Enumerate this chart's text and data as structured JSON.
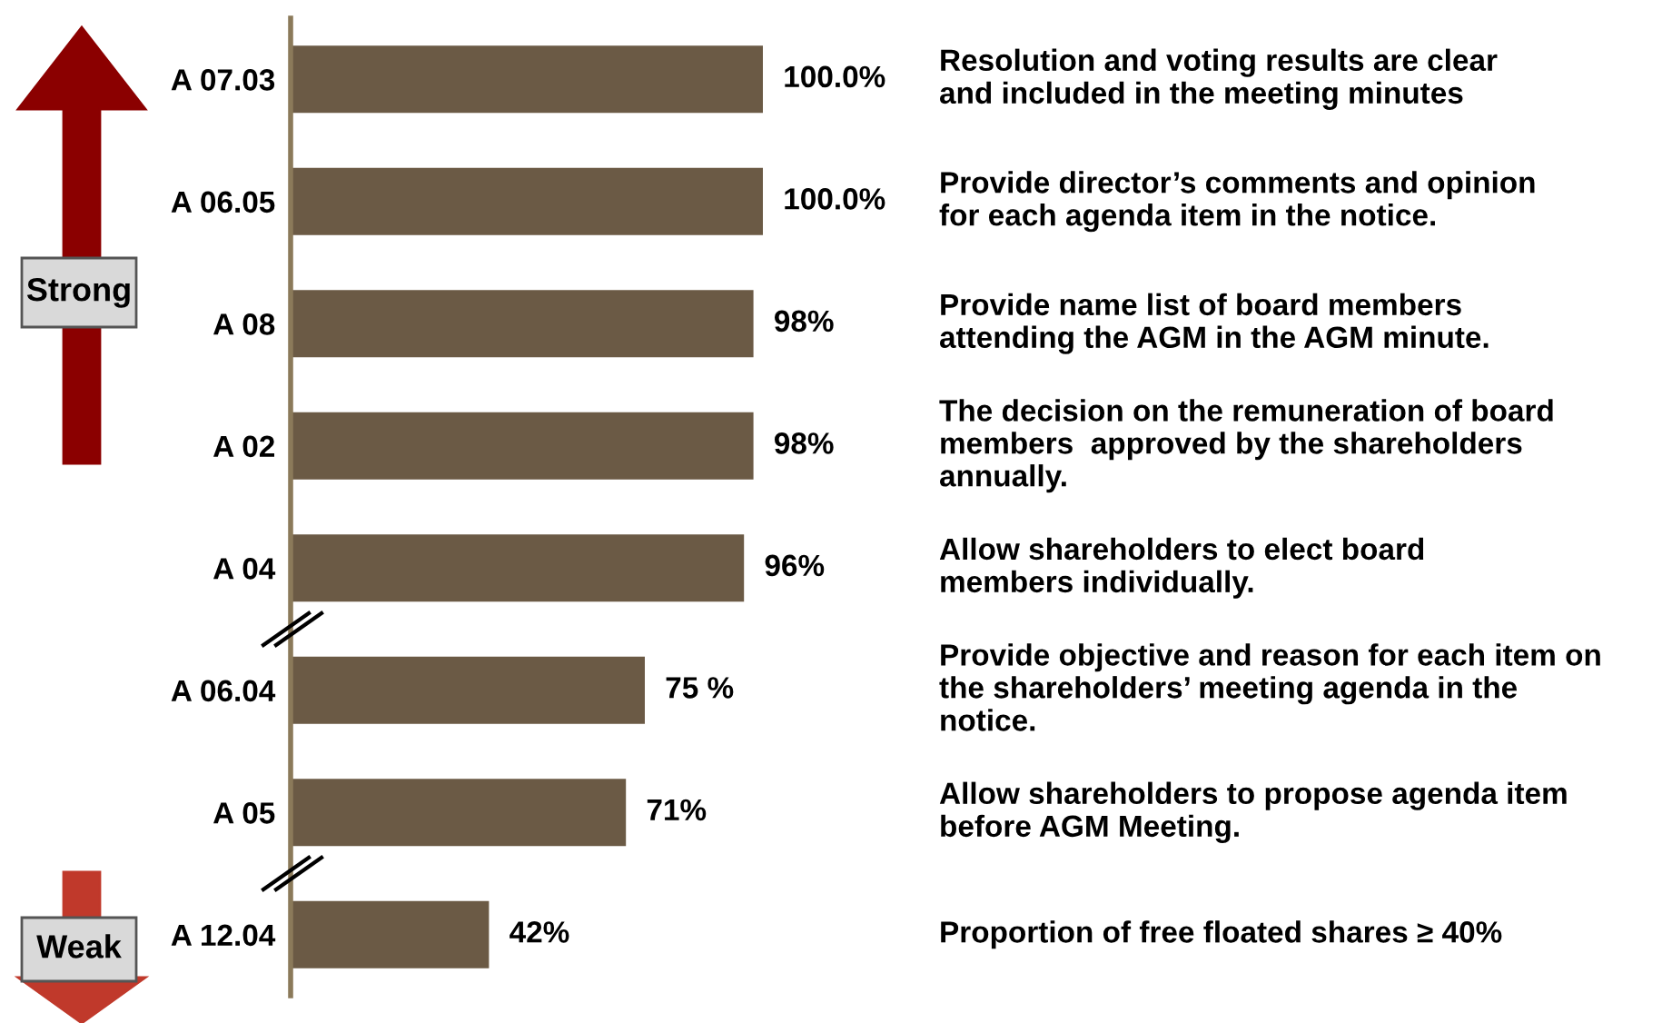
{
  "chart_data": {
    "type": "bar",
    "orientation": "horizontal",
    "xlim": [
      0,
      100
    ],
    "tick_labels": "y",
    "categories": [
      "A 07.03",
      "A 06.05",
      "A 08",
      "A 02",
      "A 04",
      "A 06.04",
      "A 05",
      "A 12.04"
    ],
    "values": [
      100,
      100,
      98,
      98,
      96,
      75,
      71,
      42
    ],
    "value_labels": [
      "100.0%",
      "100.0%",
      "98%",
      "98%",
      "96%",
      "75 %",
      "71%",
      "42%"
    ],
    "color": "#6b5a45",
    "annotations": [
      "Resolution and voting results are clear\nand included in the meeting minutes",
      "Provide director’s comments and opinion\nfor each agenda item in the notice.",
      "Provide name list of board members\nattending the AGM in the AGM minute.",
      "The decision on the remuneration of board\nmembers  approved by the shareholders\nannually.",
      "Allow shareholders to elect board\nmembers individually.",
      "Provide objective and reason for each item on\nthe shareholders’ meeting agenda in the\nnotice.",
      "Allow shareholders to propose agenda item\nbefore AGM Meeting.",
      "Proportion of free floated shares ≥ 40%",
      "Strong",
      "Weak"
    ]
  }
}
